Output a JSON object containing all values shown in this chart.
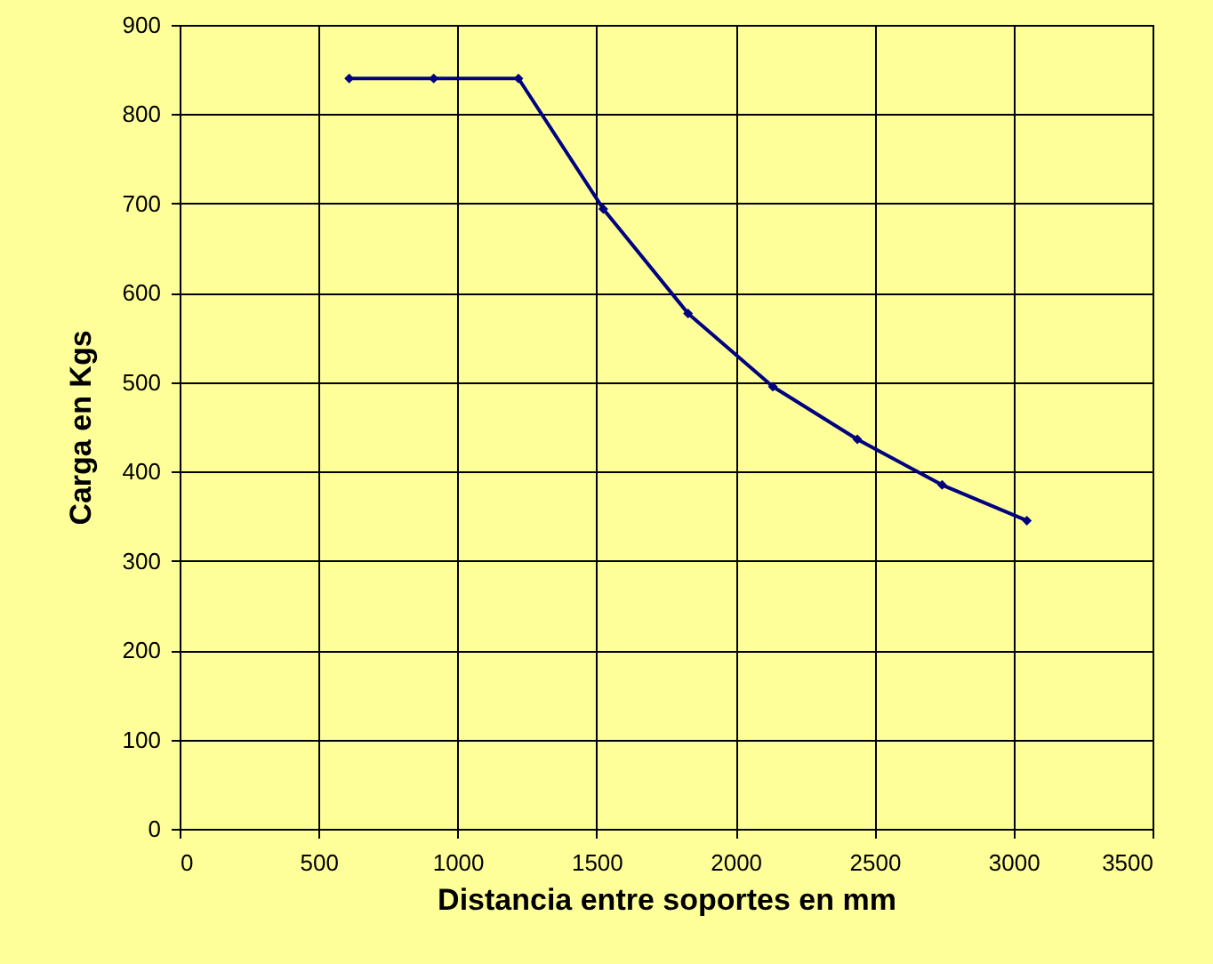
{
  "chart_data": {
    "type": "line",
    "xlabel": "Distancia entre soportes en mm",
    "ylabel": "Carga en Kgs",
    "x": [
      610,
      914,
      1219,
      1524,
      1829,
      2134,
      2438,
      2743,
      3048
    ],
    "series": [
      {
        "color": "#000080",
        "values": [
          840,
          840,
          840,
          694,
          577,
          495,
          436,
          385,
          345
        ]
      }
    ],
    "xlim": [
      0,
      3500
    ],
    "xticks": [
      0,
      500,
      1000,
      1500,
      2000,
      2500,
      3000,
      3500
    ],
    "ylim": [
      0,
      900
    ],
    "yticks": [
      0,
      100,
      200,
      300,
      400,
      500,
      600,
      700,
      800,
      900
    ],
    "grid": true,
    "marker": "diamond",
    "line_style": "solid"
  }
}
